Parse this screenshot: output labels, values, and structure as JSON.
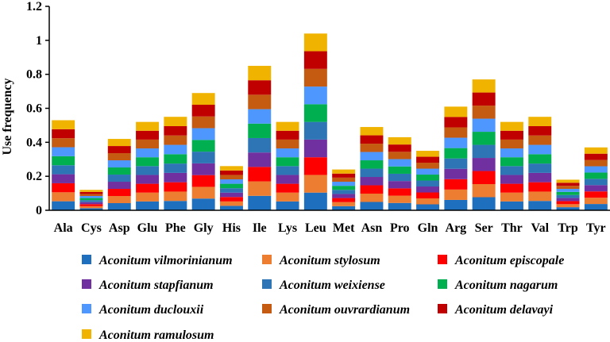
{
  "chart_data": {
    "type": "bar",
    "stacked": true,
    "title": "",
    "xlabel": "",
    "ylabel": "Use frequency",
    "ylim": [
      0,
      1.2
    ],
    "yticks": [
      "0",
      "0.2",
      "0.4",
      "0.6",
      "0.8",
      "1",
      "1.2"
    ],
    "categories": [
      "Ala",
      "Cys",
      "Asp",
      "Glu",
      "Phe",
      "Gly",
      "His",
      "Ile",
      "Lys",
      "Leu",
      "Met",
      "Asn",
      "Pro",
      "Gln",
      "Arg",
      "Ser",
      "Thr",
      "Val",
      "Trp",
      "Tyr"
    ],
    "series": [
      {
        "name": "Aconitum vilmorinianum",
        "color": "#1f6fbf",
        "values": [
          0.053,
          0.012,
          0.042,
          0.052,
          0.055,
          0.069,
          0.026,
          0.085,
          0.052,
          0.104,
          0.024,
          0.049,
          0.043,
          0.035,
          0.061,
          0.077,
          0.052,
          0.055,
          0.018,
          0.037
        ]
      },
      {
        "name": "Aconitum stylosum",
        "color": "#ed7d31",
        "values": [
          0.053,
          0.012,
          0.042,
          0.052,
          0.055,
          0.069,
          0.026,
          0.085,
          0.052,
          0.104,
          0.024,
          0.049,
          0.043,
          0.035,
          0.061,
          0.077,
          0.052,
          0.055,
          0.018,
          0.037
        ]
      },
      {
        "name": "Aconitum episcopale",
        "color": "#ff0000",
        "values": [
          0.053,
          0.012,
          0.042,
          0.052,
          0.055,
          0.069,
          0.026,
          0.085,
          0.052,
          0.104,
          0.024,
          0.049,
          0.043,
          0.035,
          0.061,
          0.077,
          0.052,
          0.055,
          0.018,
          0.037
        ]
      },
      {
        "name": "Aconitum stapfianum",
        "color": "#7030a0",
        "values": [
          0.053,
          0.012,
          0.042,
          0.052,
          0.055,
          0.069,
          0.026,
          0.085,
          0.052,
          0.104,
          0.024,
          0.049,
          0.043,
          0.035,
          0.061,
          0.077,
          0.052,
          0.055,
          0.018,
          0.037
        ]
      },
      {
        "name": "Aconitum weixiense",
        "color": "#2e75b6",
        "values": [
          0.053,
          0.012,
          0.042,
          0.052,
          0.055,
          0.069,
          0.026,
          0.085,
          0.052,
          0.104,
          0.024,
          0.049,
          0.043,
          0.035,
          0.061,
          0.077,
          0.052,
          0.055,
          0.018,
          0.037
        ]
      },
      {
        "name": "Aconitum nagarum",
        "color": "#00b050",
        "values": [
          0.053,
          0.012,
          0.042,
          0.052,
          0.055,
          0.069,
          0.026,
          0.085,
          0.052,
          0.104,
          0.024,
          0.049,
          0.043,
          0.035,
          0.061,
          0.077,
          0.052,
          0.055,
          0.018,
          0.037
        ]
      },
      {
        "name": "Aconitum duclouxii",
        "color": "#4d97ff",
        "values": [
          0.053,
          0.012,
          0.042,
          0.052,
          0.055,
          0.069,
          0.026,
          0.085,
          0.052,
          0.104,
          0.024,
          0.049,
          0.043,
          0.035,
          0.061,
          0.077,
          0.052,
          0.055,
          0.018,
          0.037
        ]
      },
      {
        "name": "Aconitum ouvrardianum",
        "color": "#c55a11",
        "values": [
          0.053,
          0.012,
          0.042,
          0.052,
          0.055,
          0.069,
          0.026,
          0.085,
          0.052,
          0.104,
          0.024,
          0.049,
          0.043,
          0.035,
          0.061,
          0.077,
          0.052,
          0.055,
          0.018,
          0.037
        ]
      },
      {
        "name": "Aconitum delavayi",
        "color": "#c00000",
        "values": [
          0.053,
          0.012,
          0.042,
          0.052,
          0.055,
          0.069,
          0.026,
          0.085,
          0.052,
          0.104,
          0.024,
          0.049,
          0.043,
          0.035,
          0.061,
          0.077,
          0.052,
          0.055,
          0.018,
          0.037
        ]
      },
      {
        "name": "Aconitum ramulosum",
        "color": "#f0b400",
        "values": [
          0.053,
          0.012,
          0.042,
          0.052,
          0.055,
          0.069,
          0.026,
          0.085,
          0.052,
          0.104,
          0.024,
          0.049,
          0.043,
          0.035,
          0.061,
          0.077,
          0.052,
          0.055,
          0.018,
          0.037
        ]
      }
    ],
    "legend_position": "bottom",
    "grid": false
  }
}
